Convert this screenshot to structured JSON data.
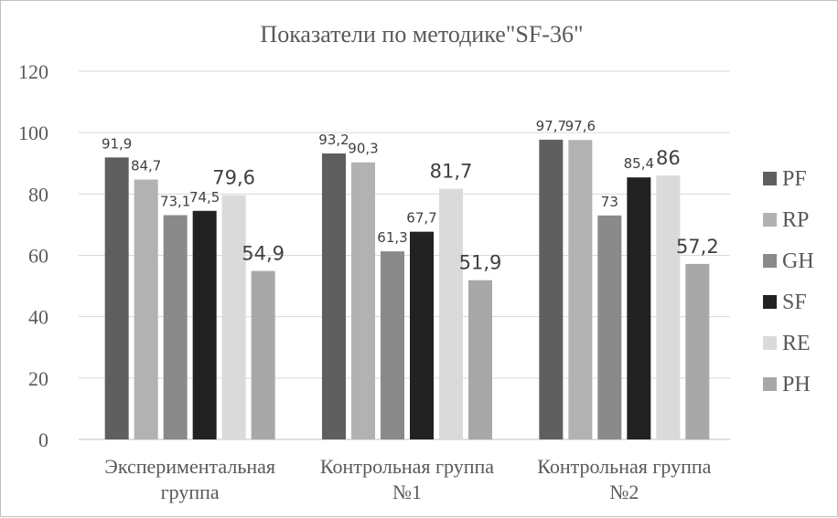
{
  "chart_data": {
    "type": "bar",
    "title": "Показатели  по методике\"SF-36\"",
    "categories": [
      [
        "Экспериментальная",
        "группа"
      ],
      [
        "Контрольная группа",
        "№1"
      ],
      [
        "Контрольная группа",
        "№2"
      ]
    ],
    "y_ticks": [
      "0",
      "20",
      "40",
      "60",
      "80",
      "100",
      "120"
    ],
    "ylim": [
      0,
      120
    ],
    "grid": true,
    "legend_position": "right",
    "series": [
      {
        "name": "PF",
        "color": "#5f5f5f",
        "values": [
          91.9,
          93.2,
          97.7
        ],
        "labels": [
          "91,9",
          "93,2",
          "97,7"
        ]
      },
      {
        "name": "RP",
        "color": "#b2b2b2",
        "values": [
          84.7,
          90.3,
          97.6
        ],
        "labels": [
          "84,7",
          "90,3",
          "97,6"
        ]
      },
      {
        "name": "GH",
        "color": "#8a8a8a",
        "values": [
          73.1,
          61.3,
          73
        ],
        "labels": [
          "73,1",
          "61,3",
          "73"
        ]
      },
      {
        "name": "SF",
        "color": "#222222",
        "values": [
          74.5,
          67.7,
          85.4
        ],
        "labels": [
          "74,5",
          "67,7",
          "85,4"
        ]
      },
      {
        "name": "RE",
        "color": "#dadada",
        "values": [
          79.6,
          81.7,
          86
        ],
        "labels": [
          "79,6",
          "81,7",
          "86"
        ]
      },
      {
        "name": "PH",
        "color": "#a8a8a8",
        "values": [
          54.9,
          51.9,
          57.2
        ],
        "labels": [
          "54,9",
          "51,9",
          "57,2"
        ]
      }
    ]
  }
}
